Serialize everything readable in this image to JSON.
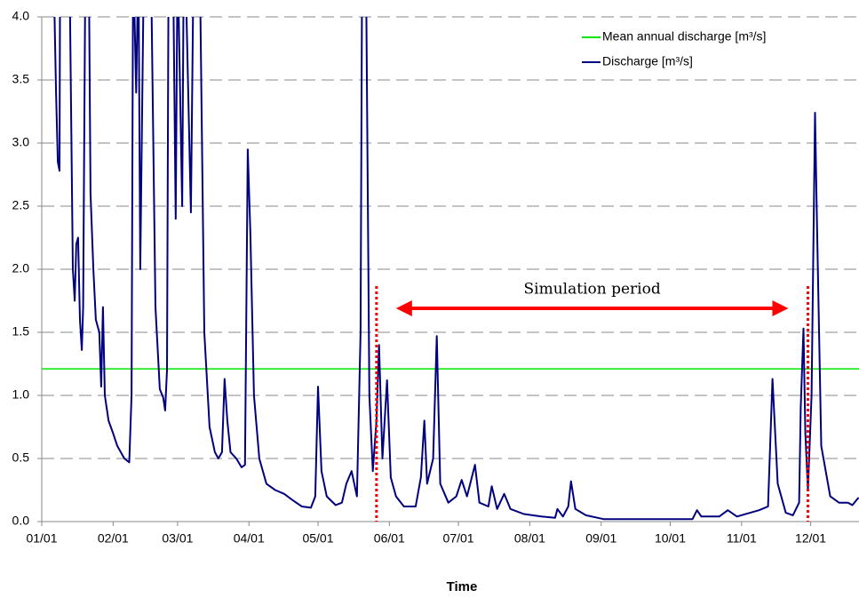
{
  "chart_data": {
    "type": "line",
    "xlabel": "Time",
    "xlim": [
      0,
      355
    ],
    "xticks": [
      {
        "value": 0,
        "label": "01/01"
      },
      {
        "value": 31,
        "label": "02/01"
      },
      {
        "value": 59,
        "label": "03/01"
      },
      {
        "value": 90,
        "label": "04/01"
      },
      {
        "value": 120,
        "label": "05/01"
      },
      {
        "value": 151,
        "label": "06/01"
      },
      {
        "value": 181,
        "label": "07/01"
      },
      {
        "value": 212,
        "label": "08/01"
      },
      {
        "value": 243,
        "label": "09/01"
      },
      {
        "value": 273,
        "label": "10/01"
      },
      {
        "value": 304,
        "label": "11/01"
      },
      {
        "value": 334,
        "label": "12/01"
      }
    ],
    "ylim": [
      0,
      4
    ],
    "yticks": [
      {
        "value": 0,
        "label": "0.0"
      },
      0.5,
      {
        "value": 1,
        "label": "1.0"
      },
      1.5,
      {
        "value": 2,
        "label": "2.0"
      },
      2.5,
      {
        "value": 3,
        "label": "3.0"
      },
      3.5,
      {
        "value": 4,
        "label": "4.0"
      }
    ],
    "grid": true,
    "reference_line": {
      "name": "Mean annual discharge [m³/s]",
      "value": 1.21,
      "color": "#00e600"
    },
    "series": [
      {
        "name": "Discharge [m³/s]",
        "color": "#00007f",
        "x": [
          5,
          6.2,
          7,
          7.7,
          8,
          12,
          13.5,
          14.3,
          15,
          15.8,
          16.6,
          17.4,
          18,
          19,
          20.4,
          21.2,
          22.4,
          23.5,
          25,
          25.8,
          26.6,
          27.4,
          29,
          31,
          32.8,
          35.9,
          38,
          39,
          39.7,
          41,
          42,
          42.8,
          44.4,
          47.4,
          49.4,
          51.3,
          52.8,
          53.6,
          54.4,
          55.1,
          57,
          58.2,
          59,
          61,
          61.7,
          62.9,
          64.8,
          66,
          68.6,
          70.6,
          72.9,
          75.2,
          76.7,
          78.3,
          79.4,
          80.6,
          82,
          84.5,
          86.8,
          88.3,
          89.5,
          90.6,
          92.2,
          94.5,
          97.6,
          101.4,
          105.3,
          109,
          113,
          116.9,
          118.8,
          120,
          121.5,
          123.8,
          127.7,
          130.4,
          132.3,
          134.6,
          136.9,
          138.5,
          139.2,
          140.8,
          142.3,
          143.8,
          145.4,
          146.5,
          148,
          150,
          151.6,
          153.9,
          157.3,
          162.4,
          164.7,
          166.2,
          167.4,
          170,
          171.6,
          173.1,
          176.6,
          180.1,
          182.4,
          184.7,
          188.2,
          190.1,
          194,
          195.5,
          197.8,
          200.9,
          203.6,
          209.4,
          217,
          223,
          224,
          226.4,
          228.7,
          229.9,
          231.8,
          236.4,
          244,
          259.5,
          282.7,
          284.6,
          286.5,
          294.3,
          298,
          302,
          311.6,
          315.5,
          317.4,
          319.7,
          323.2,
          326.3,
          329,
          329.7,
          330.9,
          331.7,
          332.8,
          334.4,
          335.9,
          336.7,
          338.6,
          342.5,
          346.3,
          350.2,
          352.1,
          354.8
        ],
        "values": [
          4.5,
          3.4,
          2.85,
          2.78,
          4.5,
          4.5,
          2.0,
          1.75,
          2.2,
          2.25,
          1.6,
          1.36,
          1.7,
          4.5,
          4.5,
          2.6,
          2.0,
          1.6,
          1.5,
          1.07,
          1.7,
          1.0,
          0.8,
          0.7,
          0.6,
          0.5,
          0.47,
          1.0,
          4.5,
          3.4,
          4.5,
          2.0,
          4.5,
          4.5,
          1.7,
          1.05,
          0.98,
          0.88,
          1.2,
          4.5,
          4.5,
          2.4,
          4.5,
          2.5,
          4.5,
          4.0,
          2.45,
          4.5,
          4.5,
          1.5,
          0.75,
          0.55,
          0.5,
          0.55,
          1.13,
          0.8,
          0.55,
          0.5,
          0.43,
          0.45,
          2.95,
          2.3,
          1.0,
          0.5,
          0.3,
          0.25,
          0.22,
          0.17,
          0.12,
          0.11,
          0.2,
          1.07,
          0.4,
          0.2,
          0.13,
          0.15,
          0.3,
          0.4,
          0.2,
          1.5,
          4.5,
          4.5,
          1.0,
          0.4,
          0.8,
          1.4,
          0.5,
          1.12,
          0.35,
          0.2,
          0.12,
          0.12,
          0.35,
          0.8,
          0.3,
          0.5,
          1.47,
          0.3,
          0.15,
          0.2,
          0.33,
          0.2,
          0.45,
          0.15,
          0.12,
          0.28,
          0.1,
          0.22,
          0.1,
          0.06,
          0.04,
          0.03,
          0.1,
          0.04,
          0.12,
          0.32,
          0.1,
          0.05,
          0.02,
          0.02,
          0.02,
          0.09,
          0.04,
          0.04,
          0.09,
          0.04,
          0.09,
          0.12,
          1.13,
          0.3,
          0.07,
          0.05,
          0.15,
          0.9,
          1.53,
          0.7,
          0.25,
          1.0,
          3.24,
          2.4,
          0.6,
          0.2,
          0.15,
          0.15,
          0.13,
          0.19
        ]
      }
    ],
    "annotation": {
      "text": "Simulation period",
      "x": [
        145.4,
        332.8
      ],
      "color": "#ff0000"
    },
    "legend": "upper right"
  }
}
